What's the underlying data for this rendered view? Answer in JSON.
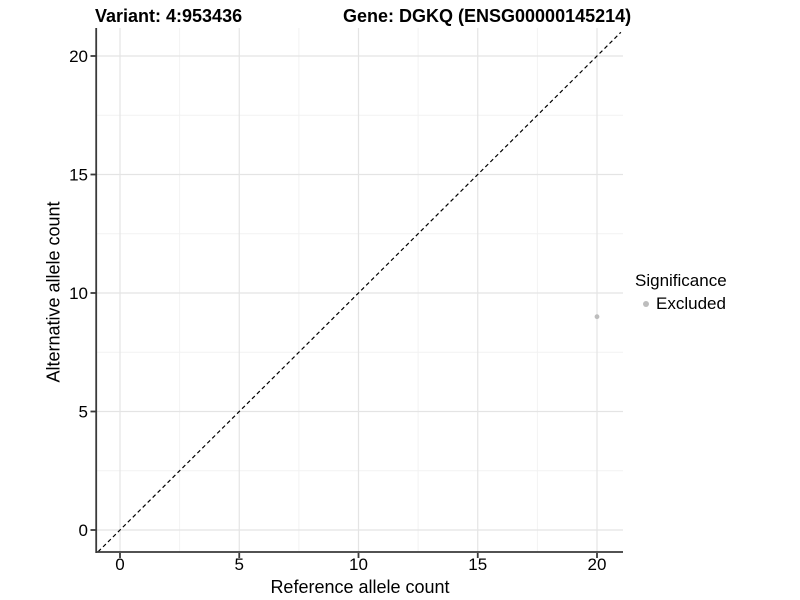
{
  "header": {
    "title_left": "Variant: 4:953436",
    "title_right": "Gene: DGKQ (ENSG00000145214)"
  },
  "chart_data": {
    "type": "scatter",
    "title_left": "Variant: 4:953436",
    "title_right": "Gene: DGKQ (ENSG00000145214)",
    "xlabel": "Reference allele count",
    "ylabel": "Alternative allele count",
    "x_ticks": [
      0,
      5,
      10,
      15,
      20
    ],
    "y_ticks": [
      0,
      5,
      10,
      15,
      20
    ],
    "x_minor_ticks": [
      2.5,
      7.5,
      12.5,
      17.5
    ],
    "y_minor_ticks": [
      2.5,
      7.5,
      12.5,
      17.5
    ],
    "xlim": [
      -1,
      21
    ],
    "ylim": [
      -1,
      21
    ],
    "grid": true,
    "legend_position": "right",
    "identity_line": {
      "shown": true,
      "style": "dashed",
      "color": "#000000"
    },
    "legend": {
      "title": "Significance",
      "items": [
        {
          "label": "Excluded",
          "color": "#bdbdbd"
        }
      ]
    },
    "series": [
      {
        "name": "Excluded",
        "color": "#bdbdbd",
        "points": [
          {
            "x": 20,
            "y": 9
          }
        ]
      }
    ]
  }
}
